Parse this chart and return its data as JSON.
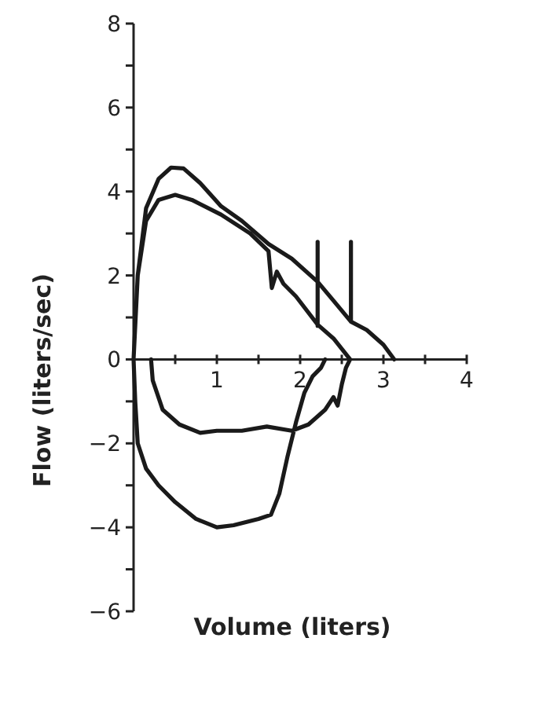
{
  "chart_data": {
    "type": "line",
    "xlabel": "Volume (liters)",
    "ylabel": "Flow (liters/sec)",
    "xlim": [
      0,
      4
    ],
    "ylim": [
      -6,
      8
    ],
    "xticks": [
      {
        "value": 0,
        "label": null
      },
      {
        "value": 0.5,
        "label": null
      },
      1,
      {
        "value": 1.5,
        "label": null
      },
      2,
      {
        "value": 2.5,
        "label": null
      },
      3,
      {
        "value": 3.5,
        "label": null
      },
      4
    ],
    "yticks": [
      -6,
      {
        "value": -5,
        "label": null
      },
      -4,
      {
        "value": -3,
        "label": null
      },
      -2,
      {
        "value": -1,
        "label": null
      },
      0,
      {
        "value": 1,
        "label": null
      },
      2,
      {
        "value": 3,
        "label": null
      },
      4,
      {
        "value": 5,
        "label": null
      },
      6,
      {
        "value": 7,
        "label": null
      },
      8
    ],
    "grid": false,
    "marker": "none",
    "line_style": "solid",
    "series": [
      {
        "color": "#1a1a1a",
        "x": [
          2.3,
          2.25,
          2.15,
          2.05,
          1.95,
          1.85,
          1.75,
          1.65,
          1.5,
          1.2,
          1.0,
          0.75,
          0.5,
          0.3,
          0.15,
          0.05,
          0.02,
          0,
          0.05,
          0.15,
          0.3,
          0.45,
          0.6,
          0.8,
          1.05,
          1.3,
          1.62,
          1.9,
          2.21,
          2.4,
          2.61,
          2.8,
          3.0,
          3.13,
          null,
          0,
          0.05,
          0.15,
          0.3,
          0.5,
          0.7,
          1.05,
          1.4,
          1.62,
          1.66,
          1.72,
          1.8,
          1.95,
          2.21,
          2.4,
          2.6,
          null,
          0.21,
          0.23,
          0.35,
          0.55,
          0.8,
          1.0,
          1.3,
          1.6,
          1.9,
          2.1,
          2.3,
          2.4,
          2.45,
          2.5,
          2.55,
          2.6,
          null,
          2.21,
          2.21,
          null,
          2.61,
          2.61
        ],
        "values": [
          0,
          -0.2,
          -0.4,
          -0.8,
          -1.5,
          -2.3,
          -3.2,
          -3.7,
          -3.8,
          -3.95,
          -4.0,
          -3.8,
          -3.4,
          -3.0,
          -2.6,
          -2,
          -1,
          0,
          2,
          3.6,
          4.3,
          4.57,
          4.55,
          4.2,
          3.65,
          3.3,
          2.75,
          2.4,
          1.85,
          1.4,
          0.9,
          0.7,
          0.35,
          0,
          null,
          0,
          2,
          3.3,
          3.8,
          3.92,
          3.8,
          3.45,
          3.0,
          2.58,
          1.7,
          2.09,
          1.8,
          1.5,
          0.83,
          0.5,
          0,
          null,
          0,
          -0.5,
          -1.2,
          -1.55,
          -1.75,
          -1.7,
          -1.7,
          -1.6,
          -1.7,
          -1.55,
          -1.2,
          -0.9,
          -1.1,
          -0.6,
          -0.2,
          0,
          null,
          0.8,
          2.8,
          null,
          0.9,
          2.8
        ]
      }
    ]
  }
}
